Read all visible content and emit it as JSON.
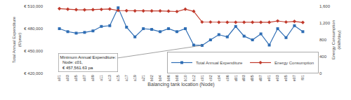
{
  "chart_data": {
    "type": "line",
    "xlabel": "Balancing tank location (Node)",
    "ylabel": "Total Annual Expenditure\n(€/year)",
    "y2label": "Energy Consumption\n(kWh/day)",
    "categories": [
      "a01",
      "a03",
      "a05",
      "a07",
      "a09",
      "a11",
      "a13",
      "a15",
      "a17",
      "a19",
      "a21",
      "b02",
      "b04",
      "b06",
      "b08",
      "b10",
      "b12",
      "c01",
      "c02",
      "c04",
      "c06",
      "d01",
      "d03",
      "d05",
      "d07",
      "e01",
      "e03",
      "e05",
      "e07",
      "f01"
    ],
    "series": [
      {
        "name": "Total Annual Expenditure",
        "color": "#2e6db4",
        "marker": "square",
        "values": [
          480000,
          476000,
          474000,
          475000,
          477000,
          483000,
          484000,
          508000,
          482000,
          469000,
          480000,
          479000,
          476000,
          480000,
          476000,
          480000,
          458000,
          457562,
          465000,
          472000,
          469000,
          483000,
          470000,
          465000,
          473000,
          458000,
          480000,
          468000,
          484000,
          476000
        ]
      },
      {
        "name": "Energy Consumption",
        "color": "#c0392b",
        "marker": "diamond",
        "axis": "y2",
        "values": [
          1545,
          1530,
          1520,
          1515,
          1520,
          1525,
          1535,
          1500,
          1495,
          1490,
          1490,
          1490,
          1490,
          1485,
          1475,
          1530,
          1480,
          1225,
          1225,
          1220,
          1220,
          1220,
          1220,
          1220,
          1220,
          1220,
          1250,
          1225,
          1240,
          1215
        ]
      }
    ],
    "ylim": [
      420000,
      510000
    ],
    "yticks": [
      {
        "value": 420000,
        "label": "€ 420,000"
      },
      {
        "value": 450000,
        "label": "€ 450,000"
      },
      {
        "value": 480000,
        "label": "€ 480,000"
      },
      {
        "value": 510000,
        "label": "€ 510,000"
      }
    ],
    "y2lim": [
      0,
      1600
    ],
    "y2ticks": [
      0,
      400,
      800,
      {
        "value": 1200,
        "label": "1,200"
      },
      {
        "value": 1600,
        "label": "1,600"
      }
    ],
    "annotations": [
      {
        "text": "Minimum Annual Expenditure:\n  Node: c01,\n  € 457,561.63 pa",
        "x": "c01",
        "y": 457562
      }
    ],
    "legend": "lower right",
    "grid": false
  }
}
